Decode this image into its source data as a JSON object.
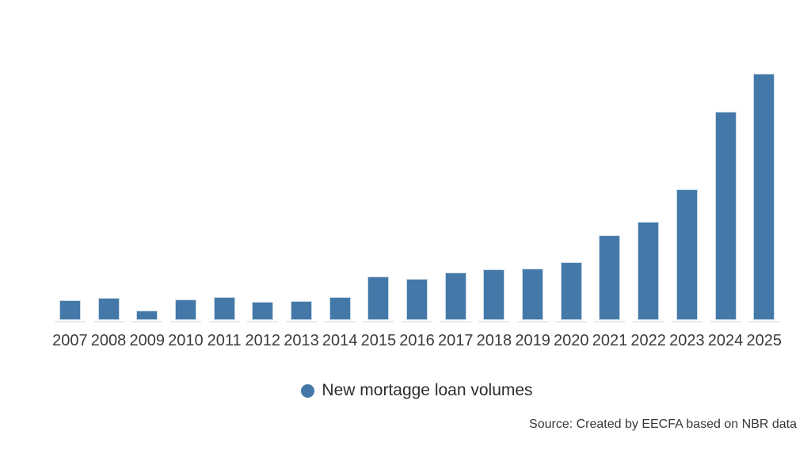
{
  "chart": {
    "legend": {
      "label": "New mortagge loan volumes",
      "marker_color": "#4478a8"
    },
    "source_note": "Source: Created by EECFA based on NBR data"
  },
  "chart_data": {
    "type": "bar",
    "title": "",
    "xlabel": "",
    "ylabel": "",
    "categories": [
      "2007",
      "2008",
      "2009",
      "2010",
      "2011",
      "2012",
      "2013",
      "2014",
      "2015",
      "2016",
      "2017",
      "2018",
      "2019",
      "2020",
      "2021",
      "2022",
      "2023",
      "2024",
      "2025"
    ],
    "values": [
      7.4,
      8.4,
      3.1,
      7.8,
      8.6,
      6.8,
      7.1,
      8.9,
      17.0,
      16.3,
      18.6,
      20.0,
      20.4,
      22.8,
      34.1,
      39.4,
      52.7,
      84.5,
      100
    ],
    "value_scale": "relative units estimated from bar heights, 2025 = 100 (no y-axis shown in chart)",
    "series_name": "New mortagge loan volumes",
    "bar_color": "#4478a8",
    "ylim": [
      0,
      100
    ],
    "grid": false,
    "y_axis_visible": false,
    "legend_position": "bottom-center"
  }
}
